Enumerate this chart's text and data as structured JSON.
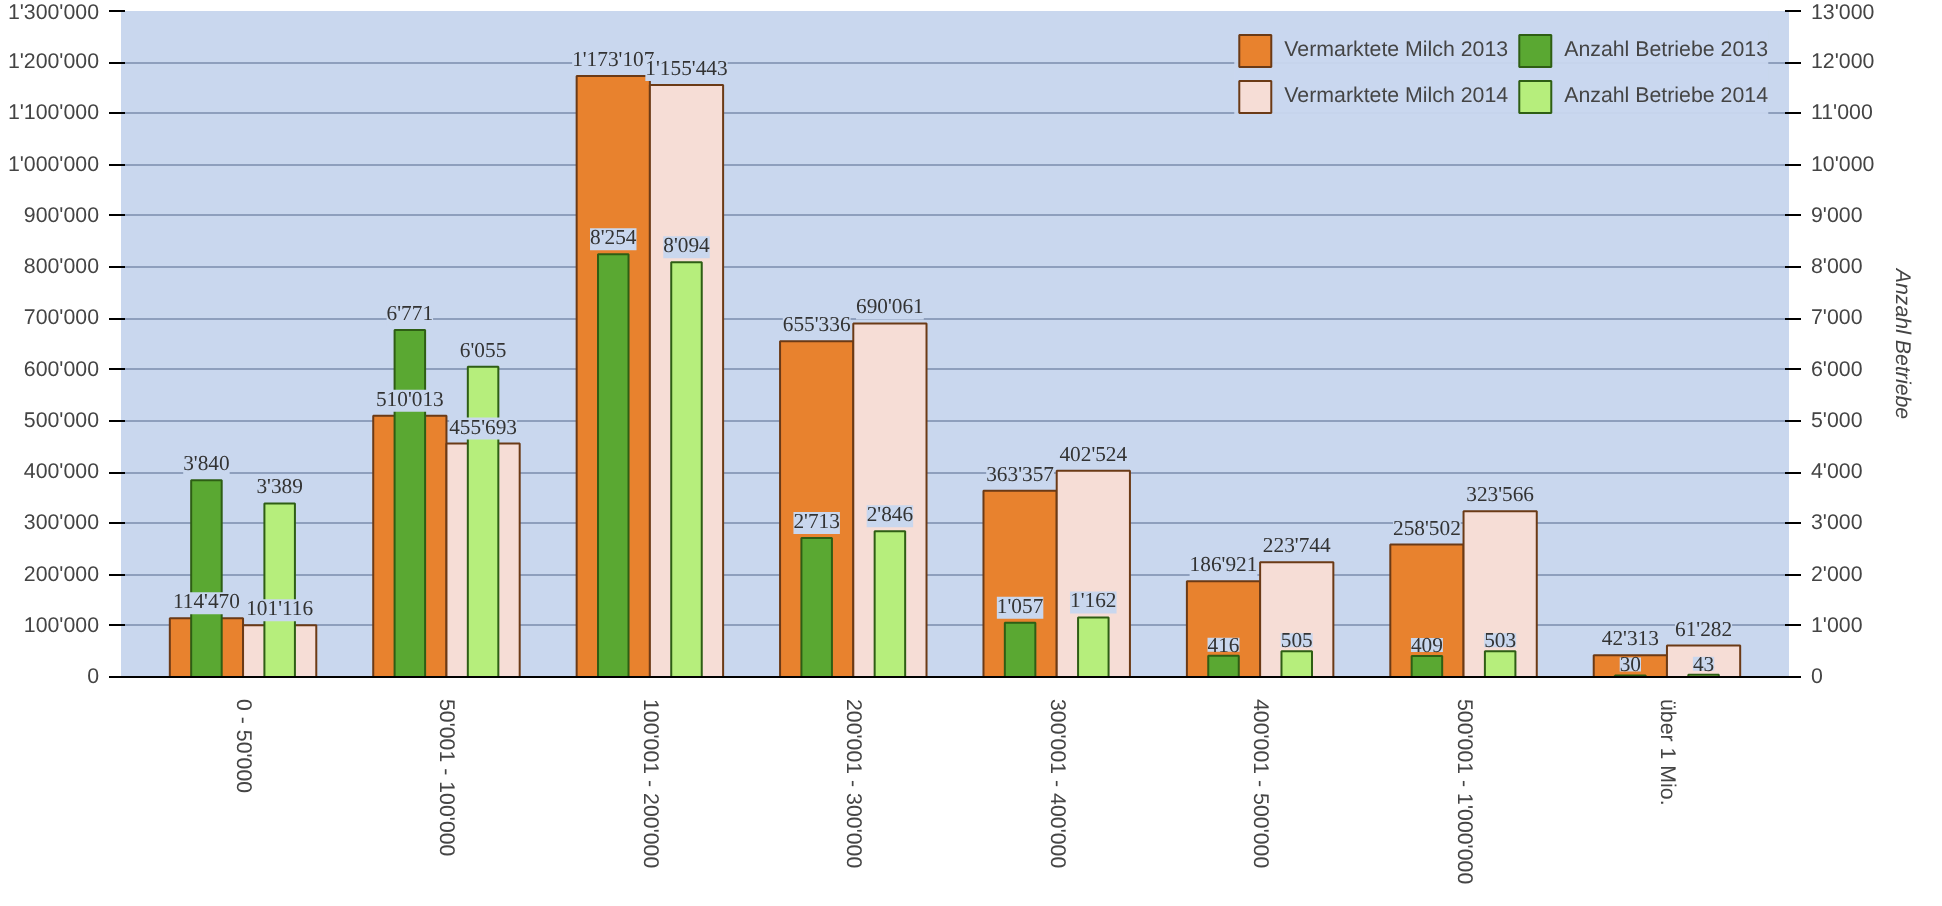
{
  "chart_data": {
    "type": "bar",
    "y2label": "Anzahl Betriebe",
    "categories": [
      "0 - 50'000",
      "50'001 - 100'000",
      "100'001 - 200'000",
      "200'001 - 300'000",
      "300'001 - 400'000",
      "400'001 - 500'000",
      "500'001 - 1'000'000",
      "über 1 Mio."
    ],
    "series": [
      {
        "name": "Vermarktete Milch 2013",
        "color": "#e8822e",
        "values": [
          114470,
          510013,
          1173107,
          655336,
          363357,
          186921,
          258502,
          42313
        ],
        "value_labels": [
          "114'470",
          "510'013",
          "1'173'107",
          "655'336",
          "363'357",
          "186'921",
          "258'502",
          "42'313"
        ]
      },
      {
        "name": "Vermarktete Milch 2014",
        "color": "#f6ddd6",
        "values": [
          101116,
          455693,
          1155443,
          690061,
          402524,
          223744,
          323566,
          61282
        ],
        "value_labels": [
          "101'116",
          "455'693",
          "1'155'443",
          "690'061",
          "402'524",
          "223'744",
          "323'566",
          "61'282"
        ]
      },
      {
        "name": "Anzahl Betriebe 2013",
        "color": "#5aa832",
        "axis": "y2",
        "values": [
          3840,
          6771,
          8254,
          2713,
          1057,
          416,
          409,
          30
        ],
        "value_labels": [
          "3'840",
          "6'771",
          "8'254",
          "2'713",
          "1'057",
          "416",
          "409",
          "30"
        ]
      },
      {
        "name": "Anzahl Betriebe 2014",
        "color": "#b6ee7c",
        "axis": "y2",
        "values": [
          3389,
          6055,
          8094,
          2846,
          1162,
          505,
          503,
          43
        ],
        "value_labels": [
          "3'389",
          "6'055",
          "8'094",
          "2'846",
          "1'162",
          "505",
          "503",
          "43"
        ]
      }
    ],
    "ylim": [
      0,
      1300000
    ],
    "yticks": [
      0,
      {
        "value": 100000,
        "label": "100'000"
      },
      {
        "value": 200000,
        "label": "200'000"
      },
      {
        "value": 300000,
        "label": "300'000"
      },
      {
        "value": 400000,
        "label": "400'000"
      },
      {
        "value": 500000,
        "label": "500'000"
      },
      {
        "value": 600000,
        "label": "600'000"
      },
      {
        "value": 700000,
        "label": "700'000"
      },
      {
        "value": 800000,
        "label": "800'000"
      },
      {
        "value": 900000,
        "label": "900'000"
      },
      {
        "value": 1000000,
        "label": "1'000'000"
      },
      {
        "value": 1100000,
        "label": "1'100'000"
      },
      {
        "value": 1200000,
        "label": "1'200'000"
      },
      {
        "value": 1300000,
        "label": "1'300'000"
      }
    ],
    "y2lim": [
      0,
      13000
    ],
    "y2ticks": [
      0,
      {
        "value": 1000,
        "label": "1'000"
      },
      {
        "value": 2000,
        "label": "2'000"
      },
      {
        "value": 3000,
        "label": "3'000"
      },
      {
        "value": 4000,
        "label": "4'000"
      },
      {
        "value": 5000,
        "label": "5'000"
      },
      {
        "value": 6000,
        "label": "6'000"
      },
      {
        "value": 7000,
        "label": "7'000"
      },
      {
        "value": 8000,
        "label": "8'000"
      },
      {
        "value": 9000,
        "label": "9'000"
      },
      {
        "value": 10000,
        "label": "10'000"
      },
      {
        "value": 11000,
        "label": "11'000"
      },
      {
        "value": 12000,
        "label": "12'000"
      },
      {
        "value": 13000,
        "label": "13'000"
      }
    ],
    "grid": "y",
    "legend": "top right"
  }
}
